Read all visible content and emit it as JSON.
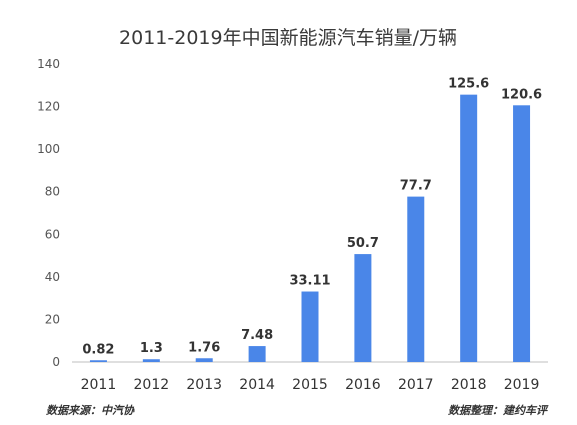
{
  "chart_data": {
    "type": "bar",
    "title": "2011-2019年中国新能源汽车销量/万辆",
    "categories": [
      "2011",
      "2012",
      "2013",
      "2014",
      "2015",
      "2016",
      "2017",
      "2018",
      "2019"
    ],
    "values": [
      0.82,
      1.3,
      1.76,
      7.48,
      33.11,
      50.7,
      77.7,
      125.6,
      120.6
    ],
    "data_labels": [
      "0.82",
      "1.3",
      "1.76",
      "7.48",
      "33.11",
      "50.7",
      "77.7",
      "125.6",
      "120.6"
    ],
    "ylim": [
      0,
      140
    ],
    "yticks": [
      0,
      20,
      40,
      60,
      80,
      100,
      120,
      140
    ],
    "xlabel": "",
    "ylabel": "",
    "grid": false,
    "legend": "none",
    "bar_color": "#4a86e8"
  },
  "footer": {
    "source": "数据来源：中汽协",
    "credit": "数据整理：建约车评"
  }
}
